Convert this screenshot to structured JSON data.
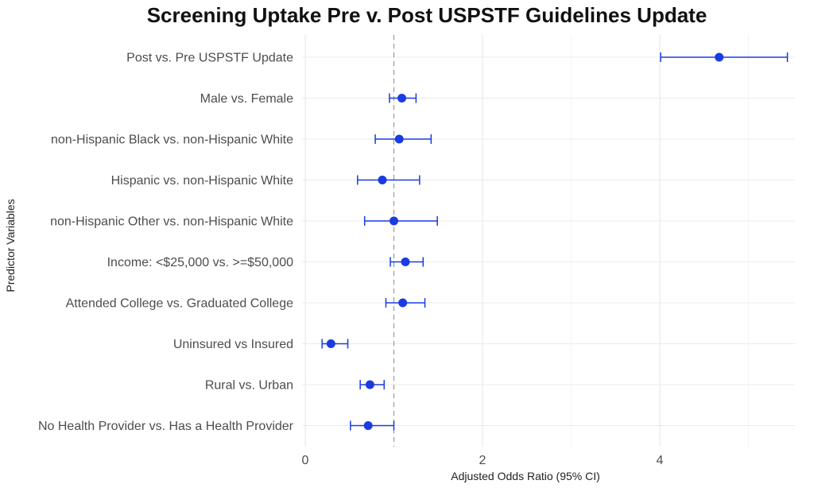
{
  "chart_data": {
    "type": "scatter",
    "title": "Screening Uptake Pre v. Post USPSTF Guidelines Update",
    "xlabel": "Adjusted Odds Ratio (95% CI)",
    "ylabel": "Predictor Variables",
    "xlim": [
      0,
      5.55
    ],
    "xticks": [
      0,
      2,
      4
    ],
    "reference_line": 1,
    "grid": true,
    "color": "#1a3be0",
    "reference_color": "#999999",
    "categories": [
      "Post vs. Pre USPSTF Update",
      "Male vs. Female",
      "non-Hispanic Black vs. non-Hispanic White",
      "Hispanic vs. non-Hispanic White",
      "non-Hispanic Other vs. non-Hispanic White",
      "Income: <$25,000 vs. >=$50,000",
      "Attended College vs. Graduated College",
      "Uninsured vs Insured",
      "Rural vs. Urban",
      "No Health Provider vs. Has a Health Provider"
    ],
    "estimates": [
      4.67,
      1.09,
      1.06,
      0.87,
      1.0,
      1.13,
      1.1,
      0.29,
      0.73,
      0.71
    ],
    "ci_lower": [
      4.01,
      0.95,
      0.79,
      0.59,
      0.67,
      0.96,
      0.91,
      0.19,
      0.62,
      0.51
    ],
    "ci_upper": [
      5.44,
      1.25,
      1.42,
      1.29,
      1.49,
      1.33,
      1.35,
      0.48,
      0.89,
      1.0
    ]
  }
}
